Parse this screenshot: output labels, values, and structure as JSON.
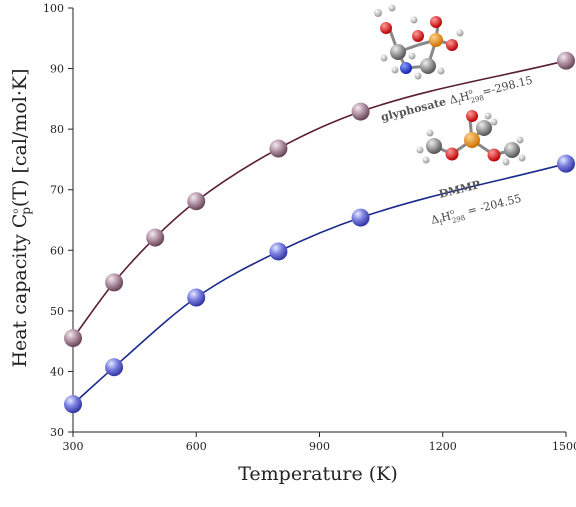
{
  "chart_data": {
    "type": "line",
    "xlabel": "Temperature (K)",
    "ylabel_main": "Heat capacity C",
    "ylabel_sub": "p",
    "ylabel_sup": "o",
    "ylabel_tail": "(T) [cal/mol·K]",
    "xlim": [
      300,
      1500
    ],
    "ylim": [
      30,
      100
    ],
    "x_ticks": [
      300,
      600,
      900,
      1200,
      1500
    ],
    "y_ticks": [
      30,
      40,
      50,
      60,
      70,
      80,
      90,
      100
    ],
    "grid": false,
    "series": [
      {
        "name": "glyphosate",
        "color": "#5a1e32",
        "marker_color": "#a07f92",
        "x": [
          300,
          400,
          500,
          600,
          800,
          1000,
          1500
        ],
        "y": [
          45.5,
          54.7,
          62.1,
          68.1,
          76.8,
          82.9,
          91.3
        ]
      },
      {
        "name": "DMMP",
        "color": "#1a2a8c",
        "marker_color": "#6f74d6",
        "x": [
          300,
          400,
          600,
          800,
          1000,
          1500
        ],
        "y": [
          34.6,
          40.7,
          52.2,
          59.8,
          65.4,
          74.3
        ]
      }
    ],
    "annotations": {
      "glyphosate": {
        "name": "glyphosate",
        "delta": "Δ",
        "sub_f": "f",
        "H": "H",
        "sup": "o",
        "sub_t": "298",
        "value": "=-298.15"
      },
      "dmmp": {
        "name": "DMMP",
        "delta": "Δ",
        "sub_f": "f",
        "H": "H",
        "sup": "o",
        "sub_t": "298",
        "value": "= -204.55"
      }
    }
  },
  "molecule_icons": [
    "glyphosate-molecule-icon",
    "dmmp-molecule-icon"
  ]
}
